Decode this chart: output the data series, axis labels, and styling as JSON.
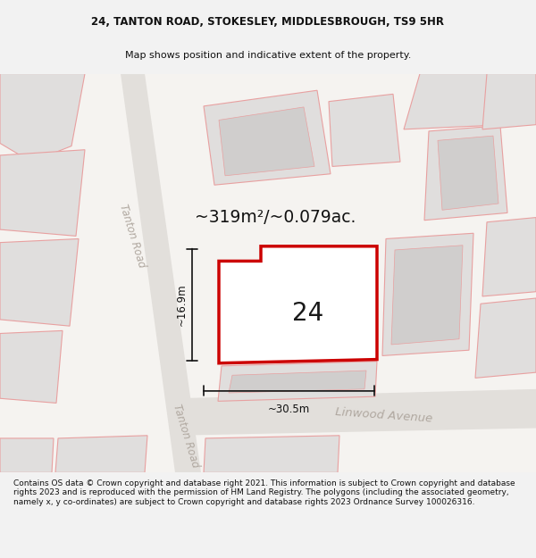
{
  "title_line1": "24, TANTON ROAD, STOKESLEY, MIDDLESBROUGH, TS9 5HR",
  "title_line2": "Map shows position and indicative extent of the property.",
  "area_label": "~319m²/~0.079ac.",
  "number_label": "24",
  "dim_height": "~16.9m",
  "dim_width": "~30.5m",
  "road_label1": "Tanton Road",
  "road_label2": "Tanton Road",
  "road_label3": "Linwood Avenue",
  "footer_text": "Contains OS data © Crown copyright and database right 2021. This information is subject to Crown copyright and database rights 2023 and is reproduced with the permission of HM Land Registry. The polygons (including the associated geometry, namely x, y co-ordinates) are subject to Crown copyright and database rights 2023 Ordnance Survey 100026316.",
  "bg_color": "#f2f2f2",
  "map_bg": "#f5f3f0",
  "road_fill": "#e2dfdb",
  "highlight_fill": "#ffffff",
  "highlight_edge": "#cc0000",
  "pink_edge": "#e8a0a0",
  "building_fill": "#e0dedd",
  "building_fill2": "#d0cecd",
  "dark_line": "#111111",
  "title_fontsize": 8.5,
  "subtitle_fontsize": 8.0,
  "footer_fontsize": 6.5,
  "area_fontsize": 13.5,
  "number_fontsize": 20,
  "dim_fontsize": 8.5,
  "road_fontsize": 8.5
}
